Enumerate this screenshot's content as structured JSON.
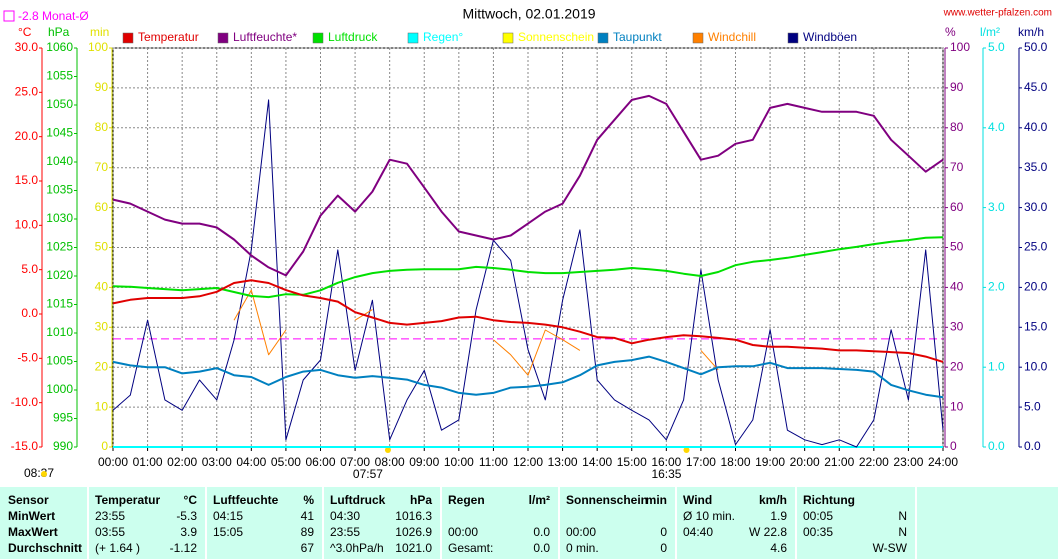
{
  "chart_data": {
    "type": "line",
    "title": "Mittwoch, 02.01.2019",
    "source": "www.wetter-pfalzen.com",
    "day_length": "08:37",
    "reference": {
      "label": "-2.8 Monat-Ø",
      "value": -2.8,
      "axis": 0,
      "color": "#ff00ff"
    },
    "sun_events": [
      {
        "label": "07:57",
        "x": 7.95
      },
      {
        "label": "16:35",
        "x": 16.583
      }
    ],
    "grid": true,
    "xlim": [
      0,
      24
    ],
    "xticks": [
      {
        "value": 0,
        "label": "00:00"
      },
      {
        "value": 1,
        "label": "01:00"
      },
      {
        "value": 2,
        "label": "02:00"
      },
      {
        "value": 3,
        "label": "03:00"
      },
      {
        "value": 4,
        "label": "04:00"
      },
      {
        "value": 5,
        "label": "05:00"
      },
      {
        "value": 6,
        "label": "06:00"
      },
      {
        "value": 7,
        "label": "07:00"
      },
      {
        "value": 8,
        "label": "08:00"
      },
      {
        "value": 9,
        "label": "09:00"
      },
      {
        "value": 10,
        "label": "10:00"
      },
      {
        "value": 11,
        "label": "11:00"
      },
      {
        "value": 12,
        "label": "12:00"
      },
      {
        "value": 13,
        "label": "13:00"
      },
      {
        "value": 14,
        "label": "14:00"
      },
      {
        "value": 15,
        "label": "15:00"
      },
      {
        "value": 16,
        "label": "16:00"
      },
      {
        "value": 17,
        "label": "17:00"
      },
      {
        "value": 18,
        "label": "18:00"
      },
      {
        "value": 19,
        "label": "19:00"
      },
      {
        "value": 20,
        "label": "20:00"
      },
      {
        "value": 21,
        "label": "21:00"
      },
      {
        "value": 22,
        "label": "22:00"
      },
      {
        "value": 23,
        "label": "23:00"
      },
      {
        "value": 24,
        "label": "24:00"
      }
    ],
    "axes": [
      {
        "label": "°C",
        "color": "#ff0000",
        "side": "left",
        "lim": [
          -15,
          30
        ],
        "ticks": [
          {
            "value": -15,
            "label": "-15.0"
          },
          {
            "value": -10,
            "label": "-10.0"
          },
          {
            "value": -5,
            "label": "-5.0"
          },
          {
            "value": 0,
            "label": "0.0"
          },
          {
            "value": 5,
            "label": "5.0"
          },
          {
            "value": 10,
            "label": "10.0"
          },
          {
            "value": 15,
            "label": "15.0"
          },
          {
            "value": 20,
            "label": "20.0"
          },
          {
            "value": 25,
            "label": "25.0"
          },
          {
            "value": 30,
            "label": "30.0"
          }
        ]
      },
      {
        "label": "hPa",
        "color": "#00c000",
        "side": "left",
        "lim": [
          990,
          1060
        ],
        "ticks": [
          990,
          995,
          1000,
          1005,
          1010,
          1015,
          1020,
          1025,
          1030,
          1035,
          1040,
          1045,
          1050,
          1055,
          1060
        ]
      },
      {
        "label": "min",
        "color": "#e0e000",
        "side": "left",
        "lim": [
          0,
          100
        ],
        "ticks": [
          0,
          10,
          20,
          30,
          40,
          50,
          60,
          70,
          80,
          90,
          100
        ]
      },
      {
        "label": "%",
        "color": "#800080",
        "side": "right",
        "lim": [
          0,
          100
        ],
        "ticks": [
          0,
          10,
          20,
          30,
          40,
          50,
          60,
          70,
          80,
          90,
          100
        ]
      },
      {
        "label": "l/m²",
        "color": "#00e0e0",
        "side": "right",
        "lim": [
          0,
          5
        ],
        "ticks": [
          {
            "value": 0,
            "label": "0.0"
          },
          {
            "value": 1,
            "label": "1.0"
          },
          {
            "value": 2,
            "label": "2.0"
          },
          {
            "value": 3,
            "label": "3.0"
          },
          {
            "value": 4,
            "label": "4.0"
          },
          {
            "value": 5,
            "label": "5.0"
          }
        ]
      },
      {
        "label": "km/h",
        "color": "#000080",
        "side": "right",
        "lim": [
          0,
          50
        ],
        "ticks": [
          {
            "value": 0,
            "label": "0.0"
          },
          {
            "value": 5,
            "label": "5.0"
          },
          {
            "value": 10,
            "label": "10.0"
          },
          {
            "value": 15,
            "label": "15.0"
          },
          {
            "value": 20,
            "label": "20.0"
          },
          {
            "value": 25,
            "label": "25.0"
          },
          {
            "value": 30,
            "label": "30.0"
          },
          {
            "value": 35,
            "label": "35.0"
          },
          {
            "value": 40,
            "label": "40.0"
          },
          {
            "value": 45,
            "label": "45.0"
          },
          {
            "value": 50,
            "label": "50.0"
          }
        ]
      }
    ],
    "x": [
      0,
      0.5,
      1,
      1.5,
      2,
      2.5,
      3,
      3.5,
      4,
      4.5,
      5,
      5.5,
      6,
      6.5,
      7,
      7.5,
      8,
      8.5,
      9,
      9.5,
      10,
      10.5,
      11,
      11.5,
      12,
      12.5,
      13,
      13.5,
      14,
      14.5,
      15,
      15.5,
      16,
      16.5,
      17,
      17.5,
      18,
      18.5,
      19,
      19.5,
      20,
      20.5,
      21,
      21.5,
      22,
      22.5,
      23,
      23.5,
      24
    ],
    "series": [
      {
        "name": "Temperatur",
        "color": "#e00000",
        "axis": 0,
        "values": [
          1.2,
          1.6,
          1.8,
          1.8,
          1.8,
          2.0,
          2.5,
          3.5,
          3.8,
          3.5,
          2.7,
          2.1,
          1.8,
          1.4,
          0.2,
          -0.4,
          -1.0,
          -1.2,
          -1.0,
          -0.8,
          -0.4,
          -0.3,
          -0.7,
          -0.9,
          -1.0,
          -1.2,
          -1.5,
          -2.0,
          -2.6,
          -2.7,
          -3.3,
          -2.9,
          -2.6,
          -2.4,
          -2.5,
          -2.7,
          -2.9,
          -3.5,
          -3.7,
          -3.7,
          -3.8,
          -3.9,
          -4.1,
          -4.1,
          -4.2,
          -4.3,
          -4.4,
          -4.8,
          -5.4
        ]
      },
      {
        "name": "Luftfeuchte*",
        "color": "#800080",
        "axis": 3,
        "values": [
          62,
          61,
          59,
          57,
          56,
          56,
          55,
          52,
          48,
          45,
          43,
          49,
          58,
          63,
          59,
          64,
          72,
          71,
          65,
          59,
          54,
          53,
          52,
          53,
          56,
          59,
          61,
          68,
          77,
          82,
          87,
          88,
          86,
          79,
          72,
          73,
          76,
          77,
          85,
          86,
          85,
          84,
          84,
          84,
          83,
          77,
          73,
          69,
          72
        ]
      },
      {
        "name": "Luftdruck",
        "color": "#00e000",
        "axis": 1,
        "values": [
          1018.2,
          1018.1,
          1017.9,
          1017.7,
          1017.5,
          1017.7,
          1017.9,
          1017.2,
          1016.5,
          1016.3,
          1016.8,
          1016.7,
          1017.5,
          1018.8,
          1019.8,
          1020.5,
          1020.9,
          1021.1,
          1021.2,
          1021.2,
          1021.2,
          1021.6,
          1021.4,
          1021.1,
          1020.7,
          1020.5,
          1020.5,
          1020.7,
          1020.9,
          1021.1,
          1021.4,
          1021.2,
          1020.9,
          1020.4,
          1020.0,
          1020.7,
          1021.9,
          1022.5,
          1022.8,
          1023.2,
          1023.7,
          1024.2,
          1024.7,
          1025.1,
          1025.6,
          1026.0,
          1026.3,
          1026.7,
          1026.8
        ]
      },
      {
        "name": "Regen°",
        "color": "#00ffff",
        "axis": 4,
        "values": [
          0,
          0,
          0,
          0,
          0,
          0,
          0,
          0,
          0,
          0,
          0,
          0,
          0,
          0,
          0,
          0,
          0,
          0,
          0,
          0,
          0,
          0,
          0,
          0,
          0,
          0,
          0,
          0,
          0,
          0,
          0,
          0,
          0,
          0,
          0,
          0,
          0,
          0,
          0,
          0,
          0,
          0,
          0,
          0,
          0,
          0,
          0,
          0,
          0
        ]
      },
      {
        "name": "Sonnenschein",
        "color": "#ffff00",
        "axis": 2,
        "values": [
          0,
          0,
          0,
          0,
          0,
          0,
          0,
          0,
          0,
          0,
          0,
          0,
          0,
          0,
          0,
          0,
          0,
          0,
          0,
          0,
          0,
          0,
          0,
          0,
          0,
          0,
          0,
          0,
          0,
          0,
          0,
          0,
          0,
          0,
          0,
          0,
          0,
          0,
          0,
          0,
          0,
          0,
          0,
          0,
          0,
          0,
          0,
          0,
          0
        ]
      },
      {
        "name": "Taupunkt",
        "color": "#0080c0",
        "axis": 0,
        "values": [
          -5.4,
          -5.8,
          -6.0,
          -6.0,
          -6.7,
          -6.5,
          -6.1,
          -6.9,
          -7.1,
          -8.0,
          -7.1,
          -6.5,
          -6.3,
          -6.9,
          -7.2,
          -7.0,
          -7.2,
          -7.4,
          -8.0,
          -8.3,
          -8.9,
          -9.1,
          -8.9,
          -8.3,
          -8.2,
          -8.0,
          -7.7,
          -6.9,
          -5.8,
          -5.4,
          -5.2,
          -4.8,
          -5.4,
          -6.1,
          -6.8,
          -6.0,
          -5.9,
          -5.9,
          -5.5,
          -6.1,
          -6.1,
          -6.1,
          -6.2,
          -6.3,
          -6.5,
          -8.0,
          -8.6,
          -9.1,
          -9.4
        ]
      },
      {
        "name": "Windchill",
        "color": "#ff8000",
        "axis": 0,
        "values": [
          null,
          null,
          null,
          null,
          null,
          null,
          null,
          -0.7,
          2.7,
          -4.6,
          -1.8,
          null,
          null,
          null,
          -0.7,
          0.5,
          null,
          null,
          null,
          null,
          null,
          null,
          -2.9,
          -4.6,
          -6.9,
          -1.8,
          -2.9,
          -4.1,
          null,
          null,
          null,
          null,
          null,
          null,
          -4.1,
          -6.3,
          null,
          null,
          null,
          null,
          null,
          null,
          null,
          null,
          null,
          null,
          null,
          null,
          null
        ]
      },
      {
        "name": "Windböen",
        "color": "#000080",
        "axis": 5,
        "values": [
          4.6,
          6.5,
          15.9,
          5.9,
          4.6,
          8.4,
          5.9,
          13.4,
          24.7,
          43.5,
          0.9,
          8.4,
          10.9,
          24.7,
          9.6,
          18.4,
          0.9,
          5.9,
          9.6,
          2.1,
          3.4,
          17.2,
          25.9,
          23.4,
          12.2,
          5.9,
          18.4,
          27.2,
          8.4,
          5.9,
          4.6,
          3.4,
          0.9,
          5.9,
          22.2,
          8.4,
          0.3,
          3.4,
          14.7,
          2.1,
          0.9,
          0.3,
          0.9,
          0,
          3.4,
          14.7,
          5.9,
          24.7,
          2.1
        ]
      }
    ]
  },
  "table": {
    "label": "Sensor",
    "columns": [
      [
        "Temperatur",
        "°C"
      ],
      [
        "Luftfeuchte",
        "%"
      ],
      [
        "Luftdruck",
        "hPa"
      ],
      [
        "Regen",
        "l/m²"
      ],
      [
        "Sonnenschein",
        "min"
      ],
      [
        "Wind",
        "km/h"
      ],
      [
        "Richtung",
        null
      ]
    ],
    "rows": [
      {
        "label": "MinWert",
        "cells": [
          [
            "23:55",
            "-5.3"
          ],
          [
            "04:15",
            "41"
          ],
          [
            "04:30",
            "1016.3"
          ],
          [
            null,
            null
          ],
          [
            null,
            null
          ],
          [
            "Ø 10 min.",
            "1.9"
          ],
          [
            "00:05",
            "N"
          ]
        ]
      },
      {
        "label": "MaxWert",
        "cells": [
          [
            "03:55",
            "3.9"
          ],
          [
            "15:05",
            "89"
          ],
          [
            "23:55",
            "1026.9"
          ],
          [
            "00:00",
            "0.0"
          ],
          [
            "00:00",
            "0"
          ],
          [
            "04:40",
            "W 22.8"
          ],
          [
            "00:35",
            "N"
          ]
        ]
      },
      {
        "label": "Durchschnitt",
        "cells": [
          [
            "(+ 1.64 )",
            "-1.12"
          ],
          [
            null,
            "67"
          ],
          [
            "^3.0hPa/h",
            "1021.0"
          ],
          [
            "Gesamt:",
            "0.0"
          ],
          [
            "0 min.",
            "0"
          ],
          [
            null,
            "4.6"
          ],
          [
            null,
            "W-SW"
          ]
        ]
      }
    ]
  }
}
